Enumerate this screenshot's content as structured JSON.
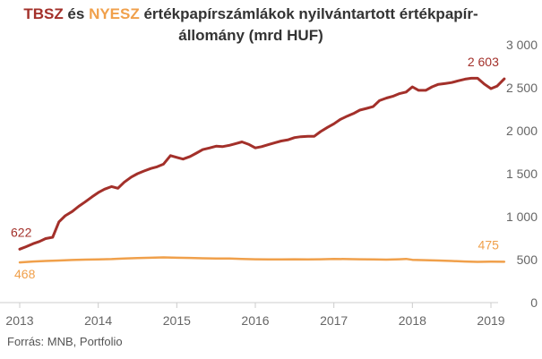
{
  "title": {
    "tbsz": "TBSZ",
    "connector": " és ",
    "nyesz": "NYESZ",
    "rest_line1": " értékpapírszámlákok nyilvántartott értékpapír-",
    "line2": "állomány (mrd HUF)"
  },
  "source": "Forrás: MNB, Portfolio",
  "colors": {
    "tbsz": "#a3302a",
    "nyesz": "#f0a04b",
    "axis": "#cccccc",
    "text": "#666666"
  },
  "chart_data": {
    "type": "line",
    "ylim": [
      0,
      3000
    ],
    "xlim": [
      2013,
      2019
    ],
    "y_ticks": [
      {
        "value": 0,
        "label": "0"
      },
      {
        "value": 500,
        "label": "500"
      },
      {
        "value": 1000,
        "label": "1 000"
      },
      {
        "value": 1500,
        "label": "1 500"
      },
      {
        "value": 2000,
        "label": "2 000"
      },
      {
        "value": 2500,
        "label": "2 500"
      },
      {
        "value": 3000,
        "label": "3 000"
      }
    ],
    "x_ticks": [
      {
        "value": 2013,
        "label": "2013"
      },
      {
        "value": 2014,
        "label": "2014"
      },
      {
        "value": 2015,
        "label": "2015"
      },
      {
        "value": 2016,
        "label": "2016"
      },
      {
        "value": 2017,
        "label": "2017"
      },
      {
        "value": 2018,
        "label": "2018"
      },
      {
        "value": 2019,
        "label": "2019"
      }
    ],
    "series": [
      {
        "name": "TBSZ",
        "color": "#a3302a",
        "points": [
          [
            2013.0,
            622
          ],
          [
            2013.08,
            650
          ],
          [
            2013.17,
            685
          ],
          [
            2013.25,
            710
          ],
          [
            2013.33,
            745
          ],
          [
            2013.42,
            760
          ],
          [
            2013.5,
            940
          ],
          [
            2013.58,
            1010
          ],
          [
            2013.67,
            1060
          ],
          [
            2013.75,
            1120
          ],
          [
            2013.83,
            1170
          ],
          [
            2013.92,
            1230
          ],
          [
            2014.0,
            1280
          ],
          [
            2014.08,
            1320
          ],
          [
            2014.17,
            1350
          ],
          [
            2014.25,
            1330
          ],
          [
            2014.33,
            1400
          ],
          [
            2014.42,
            1460
          ],
          [
            2014.5,
            1500
          ],
          [
            2014.58,
            1530
          ],
          [
            2014.67,
            1560
          ],
          [
            2014.75,
            1580
          ],
          [
            2014.83,
            1610
          ],
          [
            2014.92,
            1710
          ],
          [
            2015.0,
            1690
          ],
          [
            2015.08,
            1670
          ],
          [
            2015.17,
            1700
          ],
          [
            2015.25,
            1740
          ],
          [
            2015.33,
            1780
          ],
          [
            2015.42,
            1800
          ],
          [
            2015.5,
            1820
          ],
          [
            2015.58,
            1815
          ],
          [
            2015.67,
            1830
          ],
          [
            2015.75,
            1850
          ],
          [
            2015.83,
            1870
          ],
          [
            2015.92,
            1840
          ],
          [
            2016.0,
            1800
          ],
          [
            2016.08,
            1815
          ],
          [
            2016.17,
            1840
          ],
          [
            2016.25,
            1860
          ],
          [
            2016.33,
            1880
          ],
          [
            2016.42,
            1895
          ],
          [
            2016.5,
            1920
          ],
          [
            2016.58,
            1930
          ],
          [
            2016.67,
            1935
          ],
          [
            2016.75,
            1935
          ],
          [
            2016.83,
            1990
          ],
          [
            2016.92,
            2040
          ],
          [
            2017.0,
            2080
          ],
          [
            2017.08,
            2130
          ],
          [
            2017.17,
            2170
          ],
          [
            2017.25,
            2200
          ],
          [
            2017.33,
            2240
          ],
          [
            2017.42,
            2260
          ],
          [
            2017.5,
            2280
          ],
          [
            2017.58,
            2350
          ],
          [
            2017.67,
            2380
          ],
          [
            2017.75,
            2400
          ],
          [
            2017.83,
            2430
          ],
          [
            2017.92,
            2450
          ],
          [
            2018.0,
            2510
          ],
          [
            2018.08,
            2470
          ],
          [
            2018.17,
            2470
          ],
          [
            2018.25,
            2510
          ],
          [
            2018.33,
            2540
          ],
          [
            2018.42,
            2550
          ],
          [
            2018.5,
            2560
          ],
          [
            2018.58,
            2580
          ],
          [
            2018.67,
            2600
          ],
          [
            2018.75,
            2610
          ],
          [
            2018.83,
            2610
          ],
          [
            2018.92,
            2540
          ],
          [
            2019.0,
            2490
          ],
          [
            2019.08,
            2520
          ],
          [
            2019.17,
            2603
          ]
        ],
        "labels": [
          {
            "x": 2013.0,
            "y": 622,
            "text": "622",
            "position": "above-left"
          },
          {
            "x": 2019.17,
            "y": 2603,
            "text": "2 603",
            "position": "above-left"
          }
        ]
      },
      {
        "name": "NYESZ",
        "color": "#f0a04b",
        "points": [
          [
            2013.0,
            468
          ],
          [
            2013.17,
            478
          ],
          [
            2013.33,
            484
          ],
          [
            2013.5,
            490
          ],
          [
            2013.67,
            496
          ],
          [
            2013.83,
            500
          ],
          [
            2014.0,
            503
          ],
          [
            2014.17,
            506
          ],
          [
            2014.33,
            512
          ],
          [
            2014.5,
            518
          ],
          [
            2014.67,
            522
          ],
          [
            2014.83,
            526
          ],
          [
            2015.0,
            522
          ],
          [
            2015.17,
            520
          ],
          [
            2015.33,
            516
          ],
          [
            2015.5,
            514
          ],
          [
            2015.67,
            512
          ],
          [
            2015.83,
            508
          ],
          [
            2016.0,
            504
          ],
          [
            2016.17,
            502
          ],
          [
            2016.33,
            502
          ],
          [
            2016.5,
            504
          ],
          [
            2016.67,
            502
          ],
          [
            2016.83,
            504
          ],
          [
            2017.0,
            508
          ],
          [
            2017.17,
            506
          ],
          [
            2017.33,
            504
          ],
          [
            2017.5,
            502
          ],
          [
            2017.67,
            500
          ],
          [
            2017.83,
            504
          ],
          [
            2017.92,
            508
          ],
          [
            2018.0,
            498
          ],
          [
            2018.17,
            494
          ],
          [
            2018.33,
            490
          ],
          [
            2018.5,
            484
          ],
          [
            2018.67,
            478
          ],
          [
            2018.83,
            474
          ],
          [
            2019.0,
            476
          ],
          [
            2019.17,
            475
          ]
        ],
        "labels": [
          {
            "x": 2013.0,
            "y": 468,
            "text": "468",
            "position": "below-left"
          },
          {
            "x": 2019.17,
            "y": 475,
            "text": "475",
            "position": "above-left"
          }
        ]
      }
    ]
  }
}
